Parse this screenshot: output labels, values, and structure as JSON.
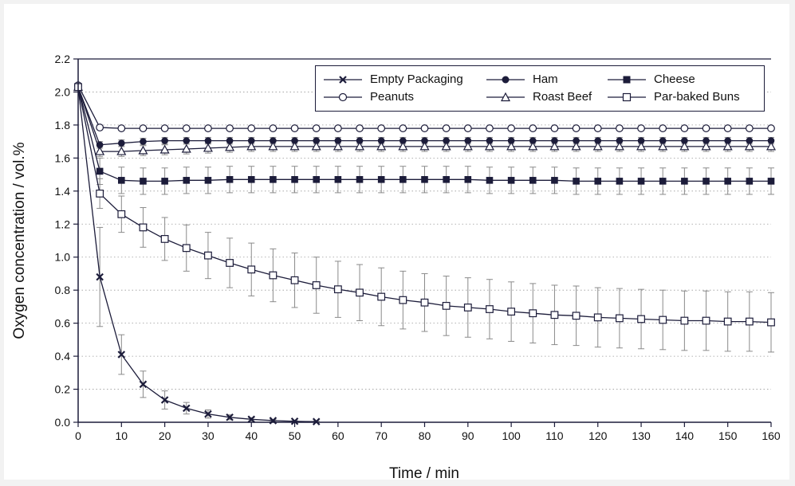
{
  "chart_data": {
    "type": "line",
    "xlabel": "Time / min",
    "ylabel": "Oxygen concentration / vol.%",
    "xlim": [
      0,
      160
    ],
    "ylim": [
      0,
      2.2
    ],
    "xticks": [
      "0",
      "10",
      "20",
      "30",
      "40",
      "50",
      "60",
      "70",
      "80",
      "90",
      "100",
      "110",
      "120",
      "130",
      "140",
      "150",
      "160"
    ],
    "yticks": [
      "0.0",
      "0.2",
      "0.4",
      "0.6",
      "0.8",
      "1.0",
      "1.2",
      "1.4",
      "1.6",
      "1.8",
      "2.0",
      "2.2"
    ],
    "grid": "horizontal dotted",
    "legend_position": "top-right",
    "series": [
      {
        "name": "Empty Packaging",
        "marker": "x",
        "color": "#1c1c3a",
        "x": [
          0,
          5,
          10,
          15,
          20,
          25,
          30,
          35,
          40,
          45,
          50,
          55
        ],
        "y": [
          2.03,
          0.88,
          0.41,
          0.23,
          0.135,
          0.085,
          0.05,
          0.03,
          0.018,
          0.01,
          0.006,
          0.004
        ],
        "err": [
          0.02,
          0.3,
          0.12,
          0.08,
          0.055,
          0.035,
          0.025,
          0.015,
          0.01,
          0.006,
          0.004,
          0.003
        ]
      },
      {
        "name": "Ham",
        "marker": "filled-circle",
        "color": "#1c1c3a",
        "x": [
          0,
          5,
          10,
          15,
          20,
          25,
          30,
          35,
          40,
          45,
          50,
          55,
          60,
          65,
          70,
          75,
          80,
          85,
          90,
          95,
          100,
          105,
          110,
          115,
          120,
          125,
          130,
          135,
          140,
          145,
          150,
          155,
          160
        ],
        "y": [
          2.03,
          1.68,
          1.69,
          1.7,
          1.705,
          1.705,
          1.705,
          1.705,
          1.705,
          1.705,
          1.705,
          1.705,
          1.705,
          1.705,
          1.705,
          1.705,
          1.705,
          1.705,
          1.705,
          1.705,
          1.705,
          1.705,
          1.705,
          1.705,
          1.705,
          1.705,
          1.705,
          1.705,
          1.705,
          1.705,
          1.705,
          1.705,
          1.705
        ],
        "err": [
          0.02,
          0.02,
          0.02,
          0.02,
          0.02,
          0.02,
          0.02,
          0.02,
          0.02,
          0.02,
          0.02,
          0.02,
          0.02,
          0.02,
          0.02,
          0.02,
          0.02,
          0.02,
          0.02,
          0.02,
          0.02,
          0.02,
          0.02,
          0.02,
          0.02,
          0.02,
          0.02,
          0.02,
          0.02,
          0.02,
          0.02,
          0.02,
          0.02
        ]
      },
      {
        "name": "Cheese",
        "marker": "filled-square",
        "color": "#1c1c3a",
        "x": [
          0,
          5,
          10,
          15,
          20,
          25,
          30,
          35,
          40,
          45,
          50,
          55,
          60,
          65,
          70,
          75,
          80,
          85,
          90,
          95,
          100,
          105,
          110,
          115,
          120,
          125,
          130,
          135,
          140,
          145,
          150,
          155,
          160
        ],
        "y": [
          2.03,
          1.52,
          1.465,
          1.46,
          1.46,
          1.465,
          1.465,
          1.47,
          1.47,
          1.47,
          1.47,
          1.47,
          1.47,
          1.47,
          1.47,
          1.47,
          1.47,
          1.47,
          1.47,
          1.465,
          1.465,
          1.465,
          1.465,
          1.46,
          1.46,
          1.46,
          1.46,
          1.46,
          1.46,
          1.46,
          1.46,
          1.46,
          1.46
        ],
        "err": [
          0.02,
          0.08,
          0.08,
          0.08,
          0.08,
          0.08,
          0.08,
          0.08,
          0.08,
          0.08,
          0.08,
          0.08,
          0.08,
          0.08,
          0.08,
          0.08,
          0.08,
          0.08,
          0.08,
          0.08,
          0.08,
          0.08,
          0.08,
          0.08,
          0.08,
          0.08,
          0.08,
          0.08,
          0.08,
          0.08,
          0.08,
          0.08,
          0.08
        ]
      },
      {
        "name": "Peanuts",
        "marker": "open-circle",
        "color": "#1c1c3a",
        "x": [
          0,
          5,
          10,
          15,
          20,
          25,
          30,
          35,
          40,
          45,
          50,
          55,
          60,
          65,
          70,
          75,
          80,
          85,
          90,
          95,
          100,
          105,
          110,
          115,
          120,
          125,
          130,
          135,
          140,
          145,
          150,
          155,
          160
        ],
        "y": [
          2.04,
          1.785,
          1.78,
          1.78,
          1.78,
          1.78,
          1.78,
          1.78,
          1.78,
          1.78,
          1.78,
          1.78,
          1.78,
          1.78,
          1.78,
          1.78,
          1.78,
          1.78,
          1.78,
          1.78,
          1.78,
          1.78,
          1.78,
          1.78,
          1.78,
          1.78,
          1.78,
          1.78,
          1.78,
          1.78,
          1.78,
          1.78,
          1.78
        ],
        "err": [
          0.01,
          0.01,
          0.01,
          0.01,
          0.01,
          0.01,
          0.01,
          0.01,
          0.01,
          0.01,
          0.01,
          0.01,
          0.01,
          0.01,
          0.01,
          0.01,
          0.01,
          0.01,
          0.01,
          0.01,
          0.01,
          0.01,
          0.01,
          0.01,
          0.01,
          0.01,
          0.01,
          0.01,
          0.01,
          0.01,
          0.01,
          0.01,
          0.01
        ]
      },
      {
        "name": "Roast Beef",
        "marker": "open-triangle",
        "color": "#1c1c3a",
        "x": [
          0,
          5,
          10,
          15,
          20,
          25,
          30,
          35,
          40,
          45,
          50,
          55,
          60,
          65,
          70,
          75,
          80,
          85,
          90,
          95,
          100,
          105,
          110,
          115,
          120,
          125,
          130,
          135,
          140,
          145,
          150,
          155,
          160
        ],
        "y": [
          2.03,
          1.64,
          1.64,
          1.645,
          1.65,
          1.655,
          1.66,
          1.665,
          1.67,
          1.67,
          1.67,
          1.67,
          1.67,
          1.67,
          1.67,
          1.67,
          1.67,
          1.67,
          1.67,
          1.67,
          1.67,
          1.67,
          1.67,
          1.67,
          1.67,
          1.67,
          1.67,
          1.67,
          1.67,
          1.67,
          1.67,
          1.67,
          1.67
        ],
        "err": [
          0.02,
          0.03,
          0.03,
          0.03,
          0.03,
          0.03,
          0.03,
          0.03,
          0.03,
          0.03,
          0.03,
          0.03,
          0.03,
          0.03,
          0.03,
          0.03,
          0.03,
          0.03,
          0.03,
          0.03,
          0.03,
          0.03,
          0.03,
          0.03,
          0.03,
          0.03,
          0.03,
          0.03,
          0.03,
          0.03,
          0.03,
          0.03,
          0.03
        ]
      },
      {
        "name": "Par-baked Buns",
        "marker": "open-square",
        "color": "#1c1c3a",
        "x": [
          0,
          5,
          10,
          15,
          20,
          25,
          30,
          35,
          40,
          45,
          50,
          55,
          60,
          65,
          70,
          75,
          80,
          85,
          90,
          95,
          100,
          105,
          110,
          115,
          120,
          125,
          130,
          135,
          140,
          145,
          150,
          155,
          160
        ],
        "y": [
          2.03,
          1.385,
          1.26,
          1.18,
          1.11,
          1.055,
          1.01,
          0.965,
          0.925,
          0.89,
          0.86,
          0.83,
          0.805,
          0.785,
          0.76,
          0.74,
          0.725,
          0.705,
          0.695,
          0.685,
          0.67,
          0.66,
          0.65,
          0.645,
          0.635,
          0.63,
          0.625,
          0.62,
          0.615,
          0.615,
          0.61,
          0.61,
          0.605
        ],
        "err": [
          0.02,
          0.09,
          0.11,
          0.12,
          0.13,
          0.14,
          0.14,
          0.15,
          0.16,
          0.16,
          0.165,
          0.17,
          0.17,
          0.17,
          0.175,
          0.175,
          0.175,
          0.18,
          0.18,
          0.18,
          0.18,
          0.18,
          0.18,
          0.18,
          0.18,
          0.18,
          0.18,
          0.18,
          0.18,
          0.18,
          0.18,
          0.18,
          0.18
        ]
      }
    ]
  }
}
